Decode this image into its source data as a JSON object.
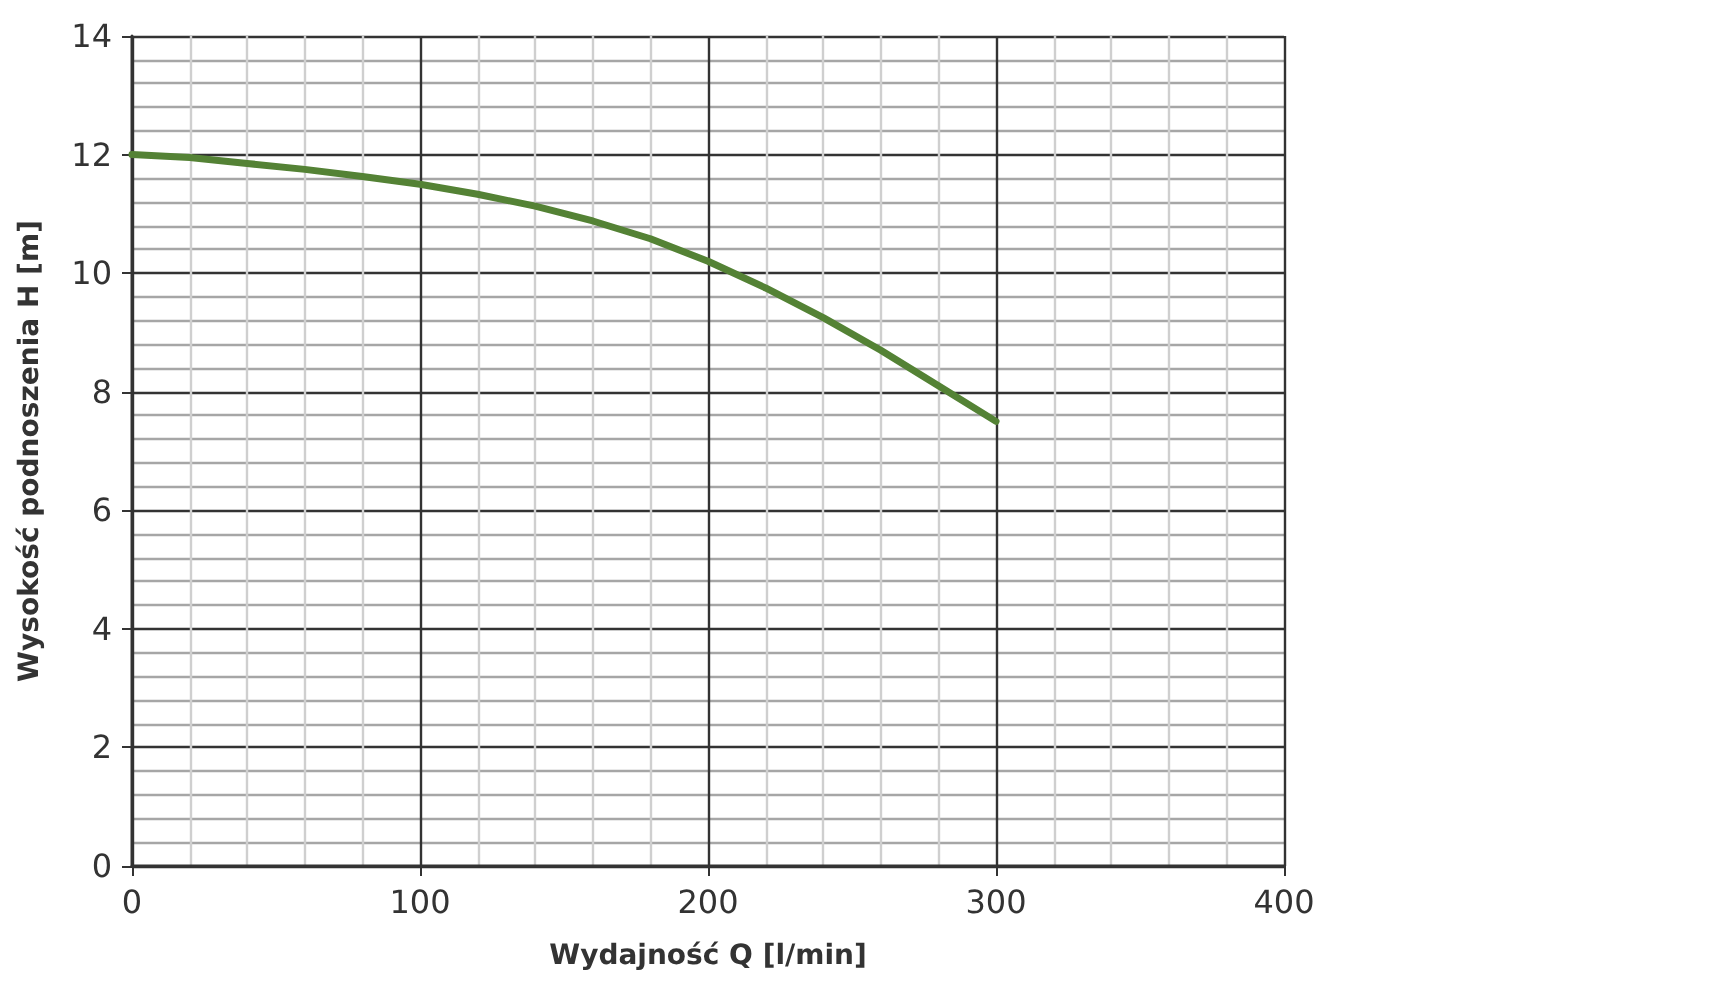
{
  "chart_data": {
    "type": "line",
    "xlabel": "Wydajność Q [l/min]",
    "ylabel": "Wysokość podnoszenia H [m]",
    "x": [
      0,
      20,
      40,
      60,
      80,
      100,
      120,
      140,
      160,
      180,
      200,
      220,
      240,
      260,
      280,
      300
    ],
    "series": [
      {
        "color": "#548235",
        "values": [
          12,
          11.95,
          11.85,
          11.75,
          11.63,
          11.5,
          11.33,
          11.13,
          10.88,
          10.58,
          10.2,
          9.75,
          9.25,
          8.7,
          8.1,
          7.5
        ]
      }
    ],
    "xlim": [
      0,
      400
    ],
    "ylim": [
      0,
      14
    ],
    "xticks": [
      0,
      100,
      200,
      300,
      400
    ],
    "yticks": [
      0,
      2,
      4,
      6,
      8,
      10,
      12,
      14
    ],
    "grid": true,
    "marker": "none",
    "line_style": "solid"
  }
}
